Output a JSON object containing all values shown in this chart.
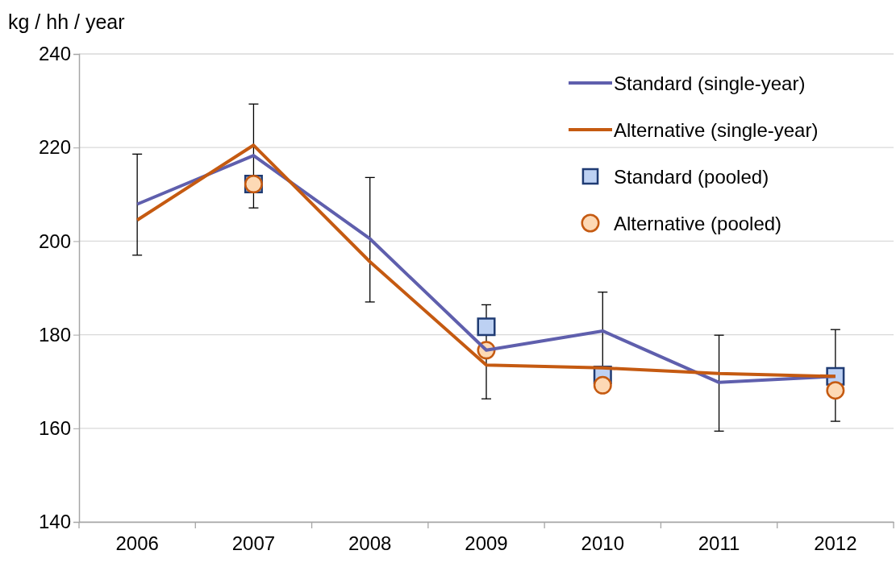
{
  "chart_data": {
    "type": "line",
    "ylabel": "kg / hh / year",
    "categories": [
      "2006",
      "2007",
      "2008",
      "2009",
      "2010",
      "2011",
      "2012"
    ],
    "ylim": [
      140,
      240
    ],
    "yticks": [
      140,
      160,
      180,
      200,
      220,
      240
    ],
    "grid": "y",
    "legend": "top right",
    "series": [
      {
        "name": "Standard (single-year)",
        "color": "#5f5fad",
        "marker": "none",
        "values": [
          207.9,
          218.3,
          200.5,
          176.7,
          180.8,
          169.8,
          171.1
        ],
        "errors": [
          [
            197,
            218.6
          ],
          [
            207.1,
            229.3
          ],
          [
            187,
            213.6
          ],
          [
            166.3,
            186.4
          ],
          [
            172.5,
            189.1
          ],
          [
            159.4,
            179.9
          ],
          [
            161.5,
            181.1
          ]
        ]
      },
      {
        "name": "Alternative (single-year)",
        "color": "#c55a11",
        "marker": "none",
        "values": [
          204.5,
          220.5,
          195.6,
          173.5,
          172.9,
          171.7,
          171.1
        ]
      },
      {
        "name": "Standard (pooled)",
        "type": "scatter",
        "color": "#bdd1f3",
        "marker": "square",
        "values": [
          null,
          212.2,
          null,
          181.7,
          171.4,
          null,
          171.1
        ]
      },
      {
        "name": "Alternative (pooled)",
        "type": "scatter",
        "color": "#fdd9b5",
        "marker": "circle",
        "values": [
          null,
          212.2,
          null,
          176.7,
          169.2,
          null,
          168.1
        ]
      }
    ]
  }
}
